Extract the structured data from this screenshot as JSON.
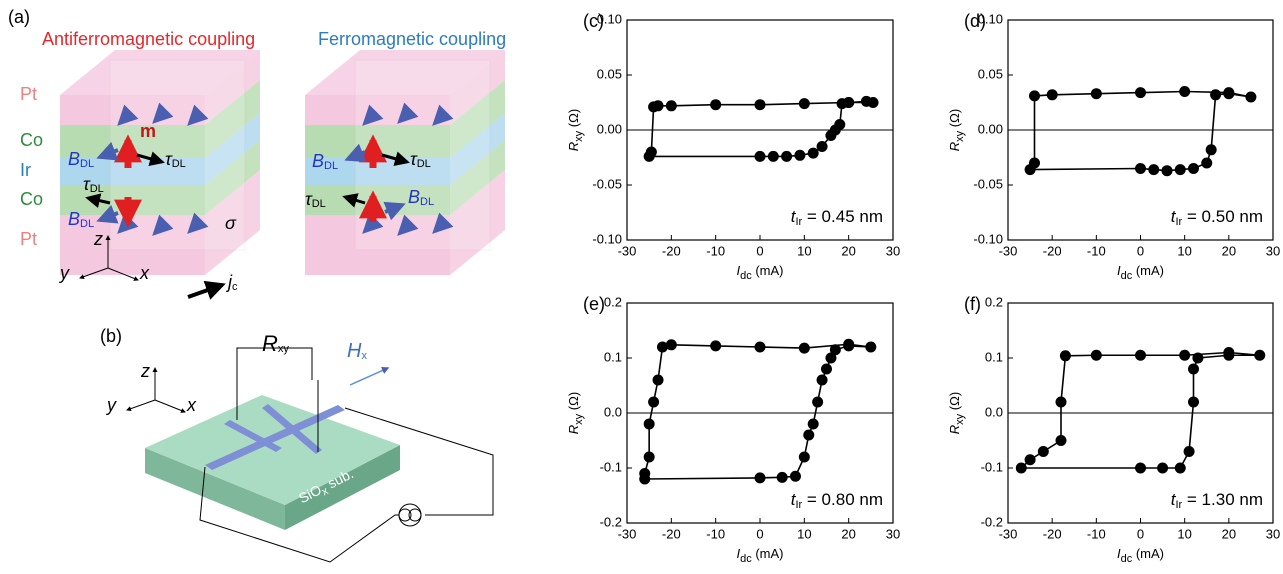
{
  "panel_a": {
    "label": "(a)",
    "left_title": "Antiferromagnetic coupling",
    "right_title": "Ferromagnetic coupling",
    "layers": [
      "Pt",
      "Co",
      "Ir",
      "Co",
      "Pt"
    ],
    "m": "m",
    "b_dl": {
      "main": "B",
      "sub": "DL"
    },
    "tau_dl": {
      "main": "τ",
      "sub": "DL"
    },
    "sigma": "σ",
    "axes": [
      "z",
      "y",
      "x"
    ],
    "jc": {
      "main": "j",
      "sub": "c"
    }
  },
  "panel_b": {
    "label": "(b)",
    "axes": [
      "z",
      "y",
      "x"
    ],
    "rxy": {
      "main": "R",
      "sub": "xy"
    },
    "hx": {
      "main": "H",
      "sub": "x"
    },
    "substrate": {
      "main": "SiO",
      "sub": "x",
      "rest": " sub."
    }
  },
  "chart_data": [
    {
      "type": "line",
      "panel": "(c)",
      "x": [
        0,
        3,
        6,
        9,
        12,
        14,
        16,
        17,
        18,
        18.5,
        20,
        24,
        25.5,
        20,
        10,
        0,
        -10,
        -20,
        -23,
        -24,
        -24.5,
        -25
      ],
      "values": [
        -0.024,
        -0.024,
        -0.024,
        -0.023,
        -0.021,
        -0.015,
        -0.005,
        0.0,
        0.005,
        0.024,
        0.025,
        0.026,
        0.025,
        0.025,
        0.024,
        0.023,
        0.023,
        0.022,
        0.022,
        0.021,
        -0.02,
        -0.024
      ],
      "color": "#000000",
      "xlim": [
        -30,
        30
      ],
      "xticks": [
        -30,
        -20,
        -10,
        0,
        10,
        20,
        30
      ],
      "ylim": [
        -0.1,
        0.1
      ],
      "yticks": [
        {
          "value": -0.1,
          "label": "-0.10"
        },
        {
          "value": -0.05,
          "label": "-0.05"
        },
        {
          "value": 0,
          "label": "0.00"
        },
        {
          "value": 0.05,
          "label": "0.05"
        },
        {
          "value": 0.1,
          "label": "0.10"
        }
      ],
      "xlabel": {
        "main": "I",
        "sub": "dc",
        "rest": " (mA)"
      },
      "ylabel": {
        "main": "R",
        "sub": "xy",
        "rest": " (Ω)"
      },
      "annotation": {
        "main": "t",
        "sub": "Ir",
        "rest": " = 0.45 nm"
      }
    },
    {
      "type": "line",
      "panel": "(d)",
      "x": [
        0,
        3,
        6,
        9,
        12,
        15,
        16,
        17,
        20,
        25,
        20,
        10,
        0,
        -10,
        -20,
        -24,
        -24,
        -25
      ],
      "values": [
        -0.035,
        -0.036,
        -0.037,
        -0.036,
        -0.035,
        -0.03,
        -0.018,
        0.032,
        0.033,
        0.03,
        0.034,
        0.035,
        0.034,
        0.033,
        0.032,
        0.031,
        -0.03,
        -0.036
      ],
      "color": "#000000",
      "xlim": [
        -30,
        30
      ],
      "xticks": [
        -30,
        -20,
        -10,
        0,
        10,
        20,
        30
      ],
      "ylim": [
        -0.1,
        0.1
      ],
      "yticks": [
        {
          "value": -0.1,
          "label": "-0.10"
        },
        {
          "value": -0.05,
          "label": "-0.05"
        },
        {
          "value": 0,
          "label": "0.00"
        },
        {
          "value": 0.05,
          "label": "0.05"
        },
        {
          "value": 0.1,
          "label": "0.10"
        }
      ],
      "xlabel": {
        "main": "I",
        "sub": "dc",
        "rest": " (mA)"
      },
      "ylabel": {
        "main": "R",
        "sub": "xy",
        "rest": " (Ω)"
      },
      "annotation": {
        "main": "t",
        "sub": "Ir",
        "rest": " = 0.50 nm"
      }
    },
    {
      "type": "line",
      "panel": "(e)",
      "x": [
        0,
        5,
        8,
        10,
        11,
        12,
        13,
        14,
        15,
        16,
        17,
        20,
        25,
        20,
        10,
        0,
        -10,
        -20,
        -22,
        -23,
        -24,
        -25,
        -25,
        -26,
        -26
      ],
      "values": [
        -0.118,
        -0.117,
        -0.115,
        -0.08,
        -0.04,
        -0.02,
        0.02,
        0.06,
        0.08,
        0.1,
        0.115,
        0.122,
        0.12,
        0.125,
        0.118,
        0.12,
        0.122,
        0.124,
        0.12,
        0.06,
        0.02,
        -0.02,
        -0.08,
        -0.11,
        -0.12
      ],
      "color": "#000000",
      "xlim": [
        -30,
        30
      ],
      "xticks": [
        -30,
        -20,
        -10,
        0,
        10,
        20,
        30
      ],
      "ylim": [
        -0.2,
        0.2
      ],
      "yticks": [
        -0.2,
        -0.1,
        {
          "value": 0,
          "label": "0.0"
        },
        0.1,
        0.2
      ],
      "xlabel": {
        "main": "I",
        "sub": "dc",
        "rest": " (mA)"
      },
      "ylabel": {
        "main": "R",
        "sub": "xy",
        "rest": " (Ω)"
      },
      "annotation": {
        "main": "t",
        "sub": "Ir",
        "rest": " = 0.80 nm"
      }
    },
    {
      "type": "line",
      "panel": "(f)",
      "x": [
        0,
        5,
        9,
        11,
        12,
        12,
        13,
        20,
        27,
        20,
        10,
        0,
        -10,
        -17,
        -18,
        -18,
        -22,
        -25,
        -27
      ],
      "values": [
        -0.1,
        -0.1,
        -0.1,
        -0.07,
        0.02,
        0.08,
        0.1,
        0.105,
        0.105,
        0.11,
        0.105,
        0.105,
        0.105,
        0.104,
        0.02,
        -0.05,
        -0.07,
        -0.085,
        -0.1
      ],
      "color": "#000000",
      "xlim": [
        -30,
        30
      ],
      "xticks": [
        -30,
        -20,
        -10,
        0,
        10,
        20,
        30
      ],
      "ylim": [
        -0.2,
        0.2
      ],
      "yticks": [
        -0.2,
        -0.1,
        {
          "value": 0,
          "label": "0.0"
        },
        0.1,
        0.2
      ],
      "xlabel": {
        "main": "I",
        "sub": "dc",
        "rest": " (mA)"
      },
      "ylabel": {
        "main": "R",
        "sub": "xy",
        "rest": " (Ω)"
      },
      "annotation": {
        "main": "t",
        "sub": "Ir",
        "rest": " = 1.30 nm"
      }
    }
  ]
}
